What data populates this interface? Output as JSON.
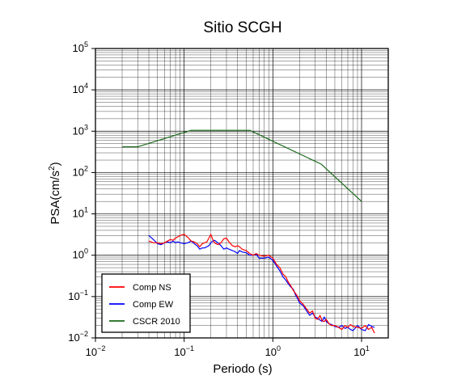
{
  "chart_data": {
    "type": "line",
    "title": "Sitio SCGH",
    "xlabel": "Periodo (s)",
    "ylabel": "PSA(cm/s2)",
    "xscale": "log",
    "yscale": "log",
    "xlim": [
      0.01,
      20
    ],
    "ylim": [
      0.01,
      100000
    ],
    "grid": true,
    "legend_position": "bottom-left",
    "x_ticks": [
      {
        "value": 0.01,
        "base": "10",
        "exp": "−2"
      },
      {
        "value": 0.1,
        "base": "10",
        "exp": "−1"
      },
      {
        "value": 1,
        "base": "10",
        "exp": "0"
      },
      {
        "value": 10,
        "base": "10",
        "exp": "1"
      }
    ],
    "y_ticks": [
      {
        "value": 0.01,
        "base": "10",
        "exp": "−2"
      },
      {
        "value": 0.1,
        "base": "10",
        "exp": "−1"
      },
      {
        "value": 1,
        "base": "10",
        "exp": "0"
      },
      {
        "value": 10,
        "base": "10",
        "exp": "1"
      },
      {
        "value": 100,
        "base": "10",
        "exp": "2"
      },
      {
        "value": 1000,
        "base": "10",
        "exp": "3"
      },
      {
        "value": 10000,
        "base": "10",
        "exp": "4"
      },
      {
        "value": 100000,
        "base": "10",
        "exp": "5"
      }
    ],
    "series": [
      {
        "name": "Comp NS",
        "color": "#ff0000",
        "x": [
          0.04,
          0.045,
          0.05,
          0.055,
          0.06,
          0.065,
          0.07,
          0.075,
          0.08,
          0.085,
          0.09,
          0.1,
          0.11,
          0.12,
          0.13,
          0.14,
          0.15,
          0.16,
          0.17,
          0.18,
          0.19,
          0.2,
          0.21,
          0.22,
          0.24,
          0.26,
          0.28,
          0.3,
          0.32,
          0.35,
          0.38,
          0.4,
          0.42,
          0.45,
          0.5,
          0.55,
          0.6,
          0.65,
          0.7,
          0.8,
          0.9,
          1.0,
          1.1,
          1.2,
          1.3,
          1.4,
          1.5,
          1.6,
          1.7,
          1.8,
          1.9,
          2.0,
          2.2,
          2.4,
          2.6,
          2.8,
          3.0,
          3.2,
          3.4,
          3.6,
          3.8,
          4.0,
          4.3,
          4.6,
          5.0,
          5.5,
          6.0,
          6.5,
          7.0,
          7.5,
          8.0,
          9.0,
          10.0,
          11.0,
          12.0,
          13.0,
          14.0
        ],
        "y": [
          2.2,
          2.0,
          2.0,
          1.9,
          2.0,
          2.2,
          2.4,
          2.3,
          2.6,
          2.8,
          3.0,
          3.2,
          2.7,
          2.2,
          2.1,
          1.9,
          1.6,
          1.9,
          2.0,
          2.1,
          2.6,
          3.2,
          2.4,
          2.0,
          1.8,
          2.0,
          2.5,
          2.6,
          2.1,
          1.7,
          1.6,
          1.7,
          1.6,
          1.4,
          1.3,
          1.1,
          1.0,
          1.1,
          1.0,
          0.95,
          1.0,
          0.85,
          0.6,
          0.5,
          0.35,
          0.3,
          0.22,
          0.18,
          0.14,
          0.12,
          0.1,
          0.08,
          0.065,
          0.05,
          0.04,
          0.045,
          0.03,
          0.028,
          0.035,
          0.026,
          0.025,
          0.028,
          0.022,
          0.02,
          0.02,
          0.018,
          0.016,
          0.02,
          0.018,
          0.021,
          0.019,
          0.018,
          0.017,
          0.02,
          0.016,
          0.018,
          0.013
        ]
      },
      {
        "name": "Comp EW",
        "color": "#0000ff",
        "x": [
          0.04,
          0.045,
          0.05,
          0.055,
          0.06,
          0.065,
          0.07,
          0.075,
          0.08,
          0.085,
          0.09,
          0.1,
          0.11,
          0.12,
          0.13,
          0.14,
          0.15,
          0.16,
          0.17,
          0.18,
          0.19,
          0.2,
          0.21,
          0.22,
          0.24,
          0.26,
          0.28,
          0.3,
          0.32,
          0.35,
          0.38,
          0.4,
          0.42,
          0.45,
          0.5,
          0.55,
          0.6,
          0.65,
          0.7,
          0.8,
          0.9,
          1.0,
          1.1,
          1.2,
          1.3,
          1.4,
          1.5,
          1.6,
          1.7,
          1.8,
          1.9,
          2.0,
          2.2,
          2.4,
          2.6,
          2.8,
          3.0,
          3.2,
          3.4,
          3.6,
          3.8,
          4.0,
          4.3,
          4.6,
          5.0,
          5.5,
          6.0,
          6.5,
          7.0,
          7.5,
          8.0,
          9.0,
          10.0,
          11.0,
          12.0,
          13.0,
          14.0
        ],
        "y": [
          3.0,
          2.4,
          1.9,
          1.8,
          2.0,
          2.1,
          2.0,
          2.2,
          2.0,
          2.1,
          2.0,
          1.9,
          2.0,
          2.2,
          1.9,
          1.7,
          1.4,
          1.5,
          1.5,
          1.6,
          1.7,
          2.0,
          2.2,
          2.3,
          2.0,
          1.7,
          1.4,
          1.5,
          1.4,
          1.3,
          1.2,
          1.1,
          1.3,
          1.2,
          1.15,
          1.0,
          1.0,
          1.05,
          0.85,
          0.85,
          0.9,
          0.75,
          0.55,
          0.42,
          0.3,
          0.25,
          0.2,
          0.17,
          0.15,
          0.11,
          0.09,
          0.07,
          0.06,
          0.045,
          0.035,
          0.04,
          0.032,
          0.03,
          0.027,
          0.025,
          0.032,
          0.025,
          0.022,
          0.021,
          0.019,
          0.018,
          0.02,
          0.017,
          0.018,
          0.016,
          0.015,
          0.02,
          0.016,
          0.015,
          0.021,
          0.019,
          0.018
        ]
      },
      {
        "name": "CSCR 2010",
        "color": "#1a6a1a",
        "x": [
          0.02,
          0.03,
          0.12,
          0.55,
          3.5,
          10
        ],
        "y": [
          420,
          420,
          1050,
          1050,
          160,
          20
        ]
      }
    ]
  }
}
